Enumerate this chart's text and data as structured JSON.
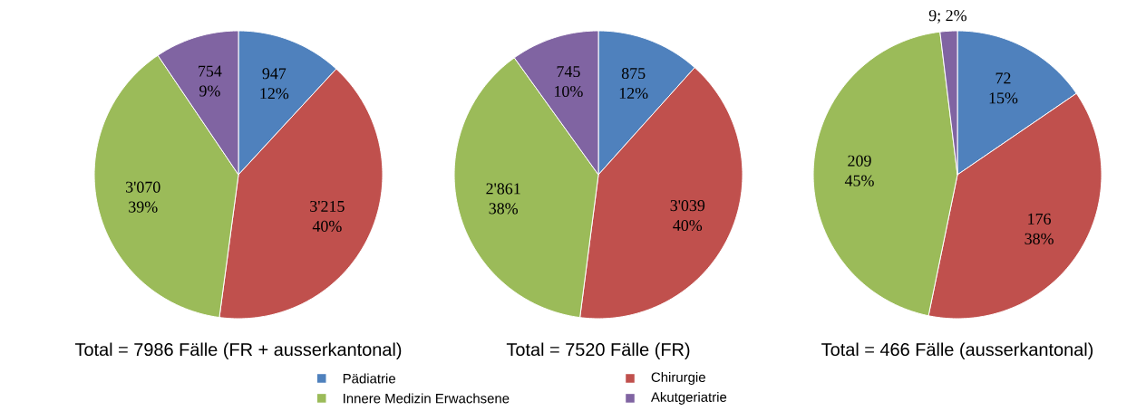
{
  "chart_data": [
    {
      "type": "pie",
      "title": "Total = 7986 Fälle (FR + ausserkantonal)",
      "categories": [
        null,
        null,
        null,
        null
      ],
      "values": [
        947,
        3215,
        3070,
        754
      ],
      "colors": [
        "#4f81bd",
        "#c0504d",
        "#9bbb59",
        "#8064a2"
      ],
      "value_labels": [
        "947 12%",
        "3'215 40%",
        "3'070 39%",
        "754 9%"
      ]
    },
    {
      "type": "pie",
      "title": "Total = 7520 Fälle (FR)",
      "categories": [
        "Pädiatrie",
        "Chirurgie",
        "Innere Medizin Erwachsene",
        "Akutgeriatrie"
      ],
      "values": [
        875,
        3039,
        2861,
        745
      ],
      "colors": [
        "#4f81bd",
        "#c0504d",
        "#9bbb59",
        "#8064a2"
      ],
      "value_labels": [
        "875 12%",
        "3'039 40%",
        "2'861 38%",
        "745 10%"
      ],
      "legend": "bottom"
    },
    {
      "type": "pie",
      "title": "Total = 466 Fälle (ausserkantonal)",
      "categories": [
        null,
        null,
        null,
        null
      ],
      "values": [
        72,
        176,
        209,
        9
      ],
      "colors": [
        "#4f81bd",
        "#c0504d",
        "#9bbb59",
        "#8064a2"
      ],
      "value_labels": [
        "72 15%",
        "176 38%",
        "209 45%",
        "9; 2%"
      ]
    }
  ]
}
